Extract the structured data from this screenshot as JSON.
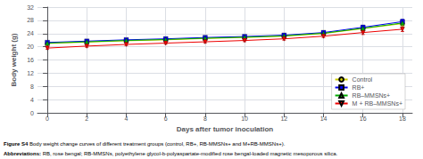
{
  "chart_data": {
    "type": "line",
    "xlabel": "Days after tumor inoculation",
    "ylabel": "Body weight (g)",
    "x": [
      0,
      2,
      4,
      6,
      8,
      10,
      12,
      14,
      16,
      18
    ],
    "xlim": [
      -0.5,
      18.5
    ],
    "ylim": [
      0,
      32
    ],
    "xticks": [
      0,
      2,
      4,
      6,
      8,
      10,
      12,
      14,
      16,
      18
    ],
    "yticks": [
      0,
      4,
      8,
      12,
      16,
      20,
      24,
      28,
      32
    ],
    "grid": true,
    "legend": "lower right",
    "series": [
      {
        "name": "Control",
        "color": "#CCCC00",
        "marker": "circle",
        "values": [
          21.0,
          21.4,
          21.8,
          22.1,
          22.5,
          22.8,
          23.2,
          24.0,
          25.5,
          27.0
        ],
        "errors": [
          0.35,
          0.35,
          0.35,
          0.35,
          0.35,
          0.35,
          0.4,
          0.4,
          0.6,
          0.7
        ]
      },
      {
        "name": "RB+",
        "color": "#0000EE",
        "marker": "square",
        "values": [
          21.3,
          21.7,
          22.1,
          22.4,
          22.8,
          23.1,
          23.5,
          24.3,
          25.9,
          27.6
        ],
        "errors": [
          0.35,
          0.35,
          0.35,
          0.35,
          0.35,
          0.35,
          0.4,
          0.4,
          0.6,
          0.7
        ]
      },
      {
        "name": "RB–MMSNs+",
        "color": "#00AA00",
        "marker": "triangle_up",
        "values": [
          21.1,
          21.5,
          21.9,
          22.2,
          22.6,
          22.9,
          23.3,
          24.1,
          25.6,
          27.2
        ],
        "errors": [
          0.35,
          0.35,
          0.35,
          0.35,
          0.35,
          0.35,
          0.4,
          0.4,
          0.6,
          0.7
        ]
      },
      {
        "name": "M + RB–MMSNs+",
        "color": "#EE0000",
        "marker": "triangle_down",
        "values": [
          19.6,
          20.2,
          20.7,
          21.1,
          21.5,
          21.9,
          22.4,
          23.2,
          24.3,
          25.3
        ],
        "errors": [
          0.35,
          0.35,
          0.35,
          0.35,
          0.35,
          0.35,
          0.4,
          0.4,
          0.6,
          0.7
        ]
      }
    ],
    "annotations": [
      [
        "Figure S4",
        " Body weight change curves of different treatment groups (control, RB+, RB-MMSNs+ and M+RB-MMSNs+)."
      ],
      [
        "Abbreviations:",
        " RB, rose bengal; RB-MMSNs, polyethylene glycol-b-polyaspartate-modified rose bengal-loaded magnetic mesoporous silica."
      ]
    ]
  }
}
